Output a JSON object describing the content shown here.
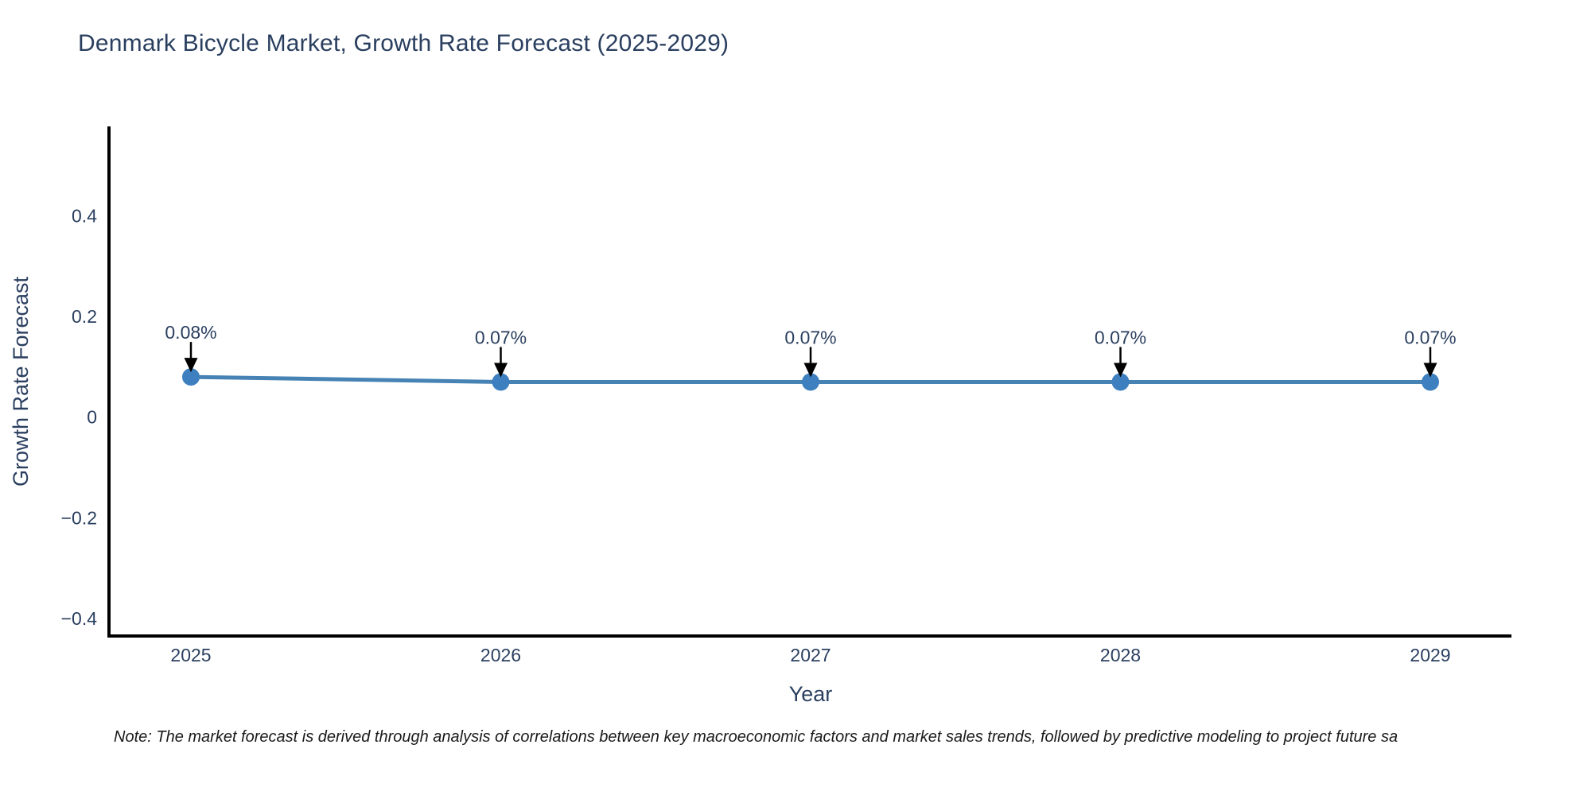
{
  "header": {
    "title": "Denmark Bicycle Market, Growth Rate Forecast (2025-2029)"
  },
  "footnote": "Note: The market forecast is derived through analysis of correlations between key macroeconomic factors and market sales trends, followed by predictive modeling to project future sa",
  "chart_data": {
    "type": "line",
    "title": "Denmark Bicycle Market, Growth Rate Forecast (2025-2029)",
    "xlabel": "Year",
    "ylabel": "Growth Rate Forecast",
    "categories": [
      "2025",
      "2026",
      "2027",
      "2028",
      "2029"
    ],
    "series": [
      {
        "name": "Growth Rate Forecast",
        "values": [
          0.08,
          0.07,
          0.07,
          0.07,
          0.07
        ],
        "point_labels": [
          "0.08%",
          "0.07%",
          "0.07%",
          "0.07%",
          "0.07%"
        ]
      }
    ],
    "yticks": [
      0.4,
      0.2,
      0,
      -0.2,
      -0.4
    ],
    "ytick_labels": [
      "0.4",
      "0.2",
      "0",
      "−0.2",
      "−0.4"
    ],
    "ylim": [
      -0.435,
      0.578
    ],
    "grid": false,
    "legend_position": "none",
    "annotations": "value labels with downward arrows above each point",
    "colors": {
      "line": "#4682b4",
      "marker": "#3d7fbf",
      "axis": "#000000",
      "text": "#2a3f5f",
      "arrow": "#000000",
      "background": "#ffffff"
    }
  }
}
